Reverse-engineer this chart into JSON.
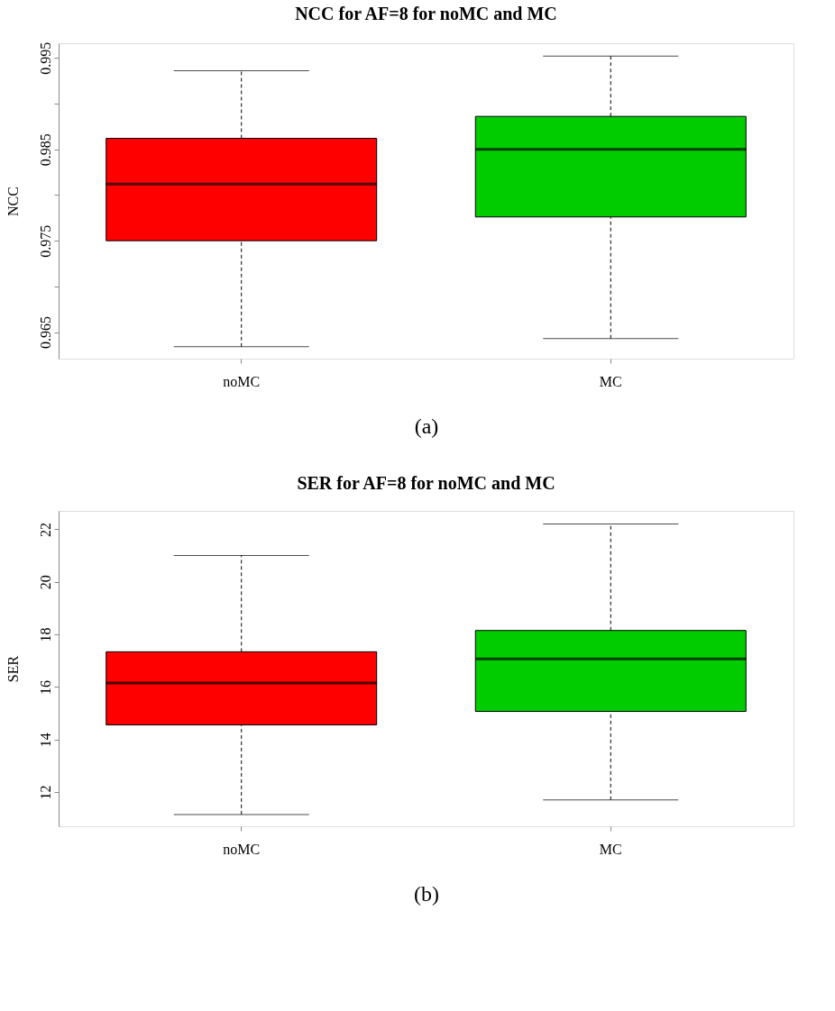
{
  "chart_data": [
    {
      "type": "box",
      "title": "NCC for AF=8 for noMC and MC",
      "ylabel": "NCC",
      "categories": [
        "noMC",
        "MC"
      ],
      "colors": [
        "#ff0000",
        "#00cc00"
      ],
      "boxes": [
        {
          "low": 0.9634,
          "q1": 0.975,
          "median": 0.9812,
          "q3": 0.9862,
          "high": 0.9936
        },
        {
          "low": 0.9643,
          "q1": 0.9776,
          "median": 0.985,
          "q3": 0.9886,
          "high": 0.9952
        }
      ],
      "ylim": [
        0.9621,
        0.9966
      ],
      "yticks": [
        0.965,
        {
          "value": 0.97,
          "label": null
        },
        0.975,
        {
          "value": 0.98,
          "label": null
        },
        0.985,
        {
          "value": 0.99,
          "label": null
        },
        0.995
      ],
      "grid": false,
      "annotations": [
        "(a)"
      ]
    },
    {
      "type": "box",
      "title": "SER for AF=8 for noMC and MC",
      "ylabel": "SER",
      "categories": [
        "noMC",
        "MC"
      ],
      "colors": [
        "#ff0000",
        "#00cc00"
      ],
      "boxes": [
        {
          "low": 11.15,
          "q1": 14.56,
          "median": 16.15,
          "q3": 17.34,
          "high": 21.0
        },
        {
          "low": 11.7,
          "q1": 15.07,
          "median": 17.07,
          "q3": 18.15,
          "high": 22.2
        }
      ],
      "ylim": [
        10.7,
        22.7
      ],
      "yticks": [
        12,
        14,
        16,
        18,
        20,
        22
      ],
      "grid": false,
      "annotations": [
        "(b)"
      ]
    }
  ]
}
